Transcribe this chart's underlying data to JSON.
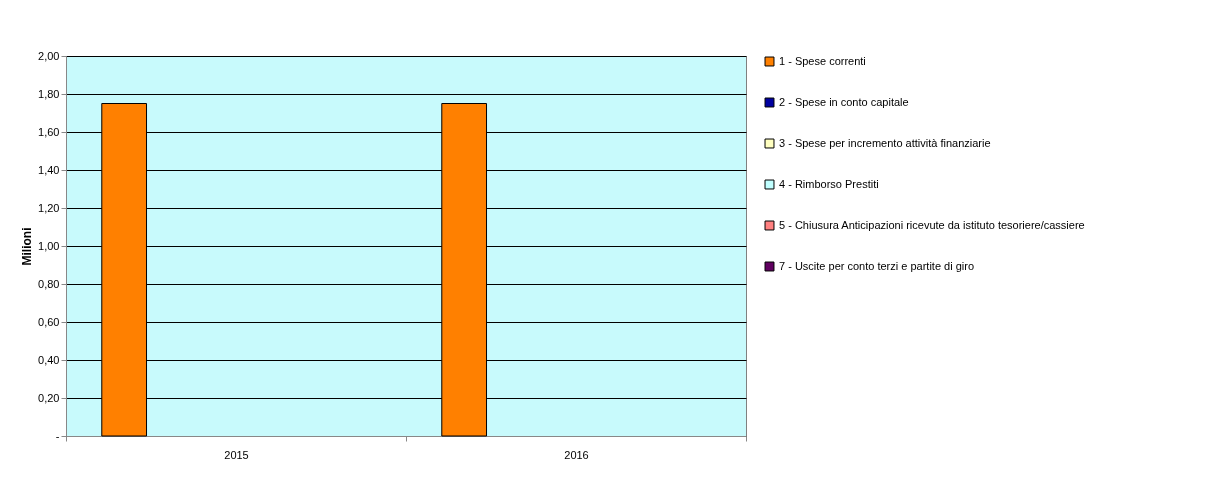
{
  "chart_data": {
    "type": "bar",
    "ylabel": "Milioni",
    "categories": [
      "2015",
      "2016"
    ],
    "series": [
      {
        "name": "1 - Spese correnti",
        "color": "#ff8000",
        "values": [
          1.75,
          1.75
        ]
      },
      {
        "name": "2 - Spese in conto capitale",
        "color": "#0000a0",
        "values": [
          0,
          0
        ]
      },
      {
        "name": "3 - Spese per incremento attività finanziarie",
        "color": "#ffffc0",
        "values": [
          0,
          0
        ]
      },
      {
        "name": "4 - Rimborso Prestiti",
        "color": "#c0ffff",
        "values": [
          0,
          0
        ]
      },
      {
        "name": "5 - Chiusura Anticipazioni ricevute da istituto tesoriere/cassiere",
        "color": "#ff8080",
        "values": [
          0,
          0
        ]
      },
      {
        "name": "7 - Uscite per conto terzi e partite di giro",
        "color": "#600060",
        "values": [
          0,
          0
        ]
      }
    ],
    "ylim": [
      0,
      2
    ],
    "yticks": [
      {
        "value": 0,
        "label": "-"
      },
      {
        "value": 0.2,
        "label": "0,20"
      },
      {
        "value": 0.4,
        "label": "0,40"
      },
      {
        "value": 0.6,
        "label": "0,60"
      },
      {
        "value": 0.8,
        "label": "0,80"
      },
      {
        "value": 1,
        "label": "1,00"
      },
      {
        "value": 1.2,
        "label": "1,20"
      },
      {
        "value": 1.4,
        "label": "1,40"
      },
      {
        "value": 1.6,
        "label": "1,60"
      },
      {
        "value": 1.8,
        "label": "1,80"
      },
      {
        "value": 2,
        "label": "2,00"
      }
    ],
    "grid": "y",
    "legend": "right"
  }
}
